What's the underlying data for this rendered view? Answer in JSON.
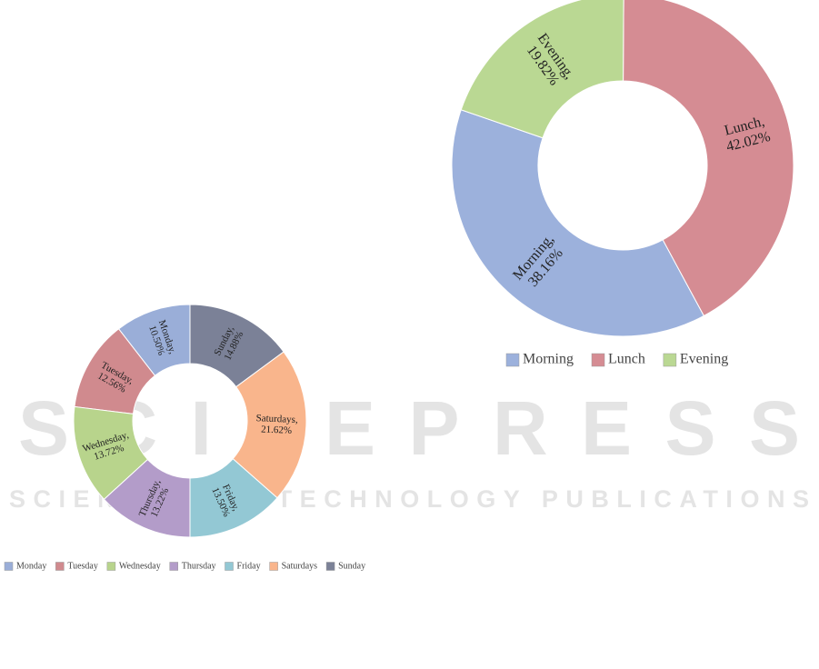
{
  "chart_data": [
    {
      "type": "donut",
      "categories": [
        "Monday",
        "Tuesday",
        "Wednesday",
        "Thursday",
        "Friday",
        "Saturdays",
        "Sunday"
      ],
      "values": [
        10.5,
        12.56,
        13.72,
        13.22,
        13.5,
        21.62,
        14.88
      ],
      "value_labels": [
        "Monday, 10.50%",
        "Tuesday, 12.56%",
        "Wednesday, 13.72%",
        "Thursday, 13.22%",
        "Friday, 13.50%",
        "Saturdays, 21.62%",
        "Sunday, 14.88%"
      ],
      "colors": [
        "#9aaed8",
        "#d08a8e",
        "#b8d48c",
        "#b39cc9",
        "#93c8d4",
        "#f9b58c",
        "#7b8197"
      ],
      "legend": "bottom"
    },
    {
      "type": "donut",
      "categories": [
        "Morning",
        "Lunch",
        "Evening"
      ],
      "values": [
        38.16,
        42.02,
        19.82
      ],
      "value_labels": [
        "Morning, 38.16%",
        "Lunch, 42.02%",
        "Evening, 19.82%"
      ],
      "colors": [
        "#9cb1dc",
        "#d58c93",
        "#bad893"
      ],
      "legend": "bottom"
    }
  ],
  "watermark": {
    "title": "SCITEPRESS",
    "subtitle": "SCIENCE AND TECHNOLOGY PUBLICATIONS"
  }
}
